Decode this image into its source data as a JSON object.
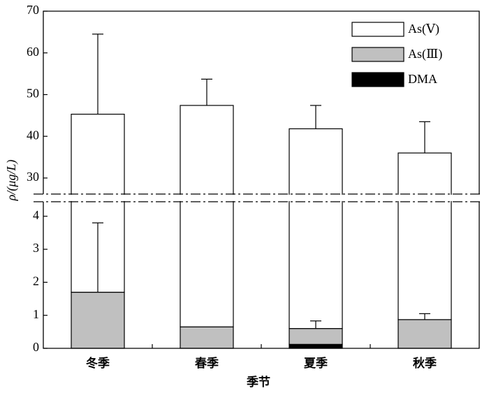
{
  "chart_data": {
    "type": "bar",
    "stacked": true,
    "x_label": "季节",
    "y_label": "ρ/(μg/L)",
    "categories": [
      "冬季",
      "春季",
      "夏季",
      "秋季"
    ],
    "series": [
      {
        "name": "DMA",
        "color": "#000000",
        "values": [
          0,
          0,
          0.12,
          0
        ],
        "errors": [
          null,
          null,
          null,
          null
        ]
      },
      {
        "name": "As(Ⅲ)",
        "color": "#c0c0c0",
        "values": [
          1.7,
          0.65,
          0.48,
          0.87
        ],
        "errors": [
          2.1,
          null,
          0.23,
          0.18
        ]
      },
      {
        "name": "As(Ⅴ)",
        "color": "#ffffff",
        "values": [
          43.6,
          46.75,
          41.2,
          35.13
        ],
        "errors": [
          19.2,
          6.3,
          5.6,
          7.5
        ]
      }
    ],
    "ylim_lower": [
      0,
      4.44
    ],
    "yticks_lower": [
      0,
      1,
      2,
      3,
      4
    ],
    "ylim_upper": [
      26.15,
      70
    ],
    "yticks_upper": [
      30,
      40,
      50,
      60,
      70
    ],
    "legend": "upper right"
  }
}
